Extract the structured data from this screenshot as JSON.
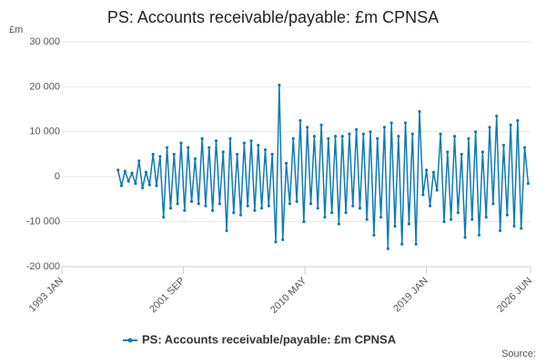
{
  "chart_data": {
    "type": "line",
    "title": "PS: Accounts receivable/payable: £m CPNSA",
    "y_unit": "£m",
    "source": "Source:",
    "x": [
      "1997 JAN",
      "1997 APR",
      "1997 JUL",
      "1997 OCT",
      "1998 JAN",
      "1998 APR",
      "1998 JUL",
      "1998 OCT",
      "1999 JAN",
      "1999 APR",
      "1999 JUL",
      "1999 OCT",
      "2000 JAN",
      "2000 APR",
      "2000 JUL",
      "2000 OCT",
      "2001 JAN",
      "2001 APR",
      "2001 JUL",
      "2001 OCT",
      "2002 JAN",
      "2002 APR",
      "2002 JUL",
      "2002 OCT",
      "2003 JAN",
      "2003 APR",
      "2003 JUL",
      "2003 OCT",
      "2004 JAN",
      "2004 APR",
      "2004 JUL",
      "2004 OCT",
      "2005 JAN",
      "2005 APR",
      "2005 JUL",
      "2005 OCT",
      "2006 JAN",
      "2006 APR",
      "2006 JUL",
      "2006 OCT",
      "2007 JAN",
      "2007 APR",
      "2007 JUL",
      "2007 OCT",
      "2008 JAN",
      "2008 APR",
      "2008 JUL",
      "2008 OCT",
      "2009 JAN",
      "2009 APR",
      "2009 JUL",
      "2009 OCT",
      "2010 JAN",
      "2010 APR",
      "2010 JUL",
      "2010 OCT",
      "2011 JAN",
      "2011 APR",
      "2011 JUL",
      "2011 OCT",
      "2012 JAN",
      "2012 APR",
      "2012 JUL",
      "2012 OCT",
      "2013 JAN",
      "2013 APR",
      "2013 JUL",
      "2013 OCT",
      "2014 JAN",
      "2014 APR",
      "2014 JUL",
      "2014 OCT",
      "2015 JAN",
      "2015 APR",
      "2015 JUL",
      "2015 OCT",
      "2016 JAN",
      "2016 APR",
      "2016 JUL",
      "2016 OCT",
      "2017 JAN",
      "2017 APR",
      "2017 JUL",
      "2017 OCT",
      "2018 JAN",
      "2018 APR",
      "2018 JUL",
      "2018 OCT",
      "2019 JAN",
      "2019 APR",
      "2019 JUL",
      "2019 OCT",
      "2020 JAN",
      "2020 APR",
      "2020 JUL",
      "2020 OCT",
      "2021 JAN",
      "2021 APR",
      "2021 JUL",
      "2021 OCT",
      "2022 JAN",
      "2022 APR",
      "2022 JUL",
      "2022 OCT",
      "2023 JAN",
      "2023 APR",
      "2023 JUL",
      "2023 OCT",
      "2024 JAN",
      "2024 APR",
      "2024 JUL",
      "2024 OCT",
      "2025 JAN",
      "2025 APR",
      "2025 JUL",
      "2025 OCT",
      "2026 JAN",
      "2026 APR"
    ],
    "series": [
      {
        "name": "PS: Accounts receivable/payable: £m CPNSA",
        "color": "#0f7ab4",
        "values": [
          1500,
          -2000,
          1200,
          -1000,
          800,
          -1500,
          3500,
          -2500,
          1000,
          -1800,
          5000,
          -2000,
          4500,
          -9000,
          6500,
          -7000,
          5000,
          -6000,
          7500,
          -7500,
          6500,
          -5500,
          4000,
          -6000,
          8500,
          -6500,
          6500,
          -7500,
          8000,
          -6000,
          5500,
          -12000,
          8500,
          -8000,
          5000,
          -8500,
          7500,
          -6500,
          8000,
          -7500,
          7000,
          -7000,
          6000,
          -6500,
          5000,
          -14500,
          20400,
          -14000,
          3000,
          -6000,
          8500,
          -5500,
          12500,
          -10000,
          11000,
          -6000,
          9000,
          -7000,
          11500,
          -9000,
          8500,
          -8000,
          9000,
          -10500,
          9000,
          -8000,
          9500,
          -6500,
          10500,
          -7000,
          9500,
          -9500,
          10000,
          -13000,
          8500,
          -9000,
          11000,
          -16000,
          12000,
          -11000,
          9000,
          -15000,
          12000,
          -10500,
          9500,
          -15000,
          14500,
          -4000,
          1500,
          -6500,
          1000,
          -3000,
          9500,
          -10000,
          5500,
          -9500,
          9000,
          -8000,
          5000,
          -13500,
          8500,
          -9500,
          10000,
          -13000,
          5500,
          -9000,
          11000,
          -6000,
          13500,
          -12000,
          7000,
          -8500,
          11500,
          -11000,
          12500,
          -11500,
          6500,
          -1500
        ]
      }
    ],
    "xlim": [
      "1993 JAN",
      "2026 JUN"
    ],
    "xticks": [
      "1993 JAN",
      "2001 SEP",
      "2010 MAY",
      "2019 JAN",
      "2026 JUN"
    ],
    "ylim": [
      -20000,
      30000
    ],
    "yticks": [
      {
        "value": -20000,
        "label": "-20 000"
      },
      {
        "value": -10000,
        "label": "-10 000"
      },
      0,
      {
        "value": 10000,
        "label": "10 000"
      },
      {
        "value": 20000,
        "label": "20 000"
      },
      {
        "value": 30000,
        "label": "30 000"
      }
    ],
    "grid": true
  }
}
